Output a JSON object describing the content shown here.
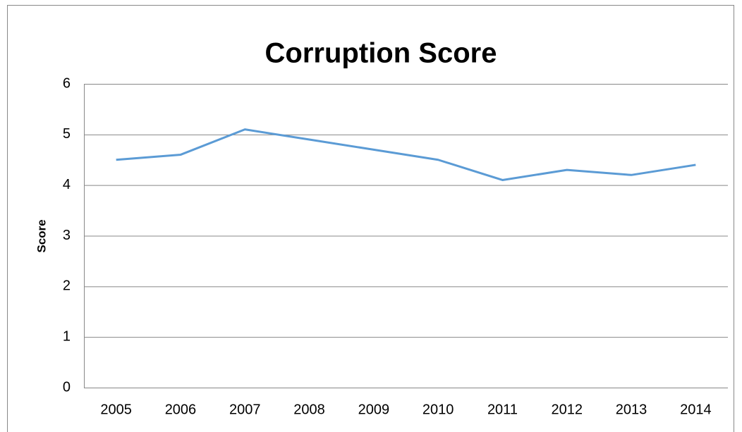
{
  "chart_data": {
    "type": "line",
    "title": "Corruption Score",
    "y_label": "Score",
    "categories": [
      "2005",
      "2006",
      "2007",
      "2008",
      "2009",
      "2010",
      "2011",
      "2012",
      "2013",
      "2014"
    ],
    "series": [
      {
        "name": "Score",
        "color": "#5b9bd5",
        "values": [
          4.5,
          4.6,
          5.1,
          4.9,
          4.7,
          4.5,
          4.1,
          4.3,
          4.2,
          4.4
        ]
      }
    ],
    "ylim": [
      0,
      6
    ],
    "yticks": [
      0,
      1,
      2,
      3,
      4,
      5,
      6
    ],
    "grid": true
  }
}
